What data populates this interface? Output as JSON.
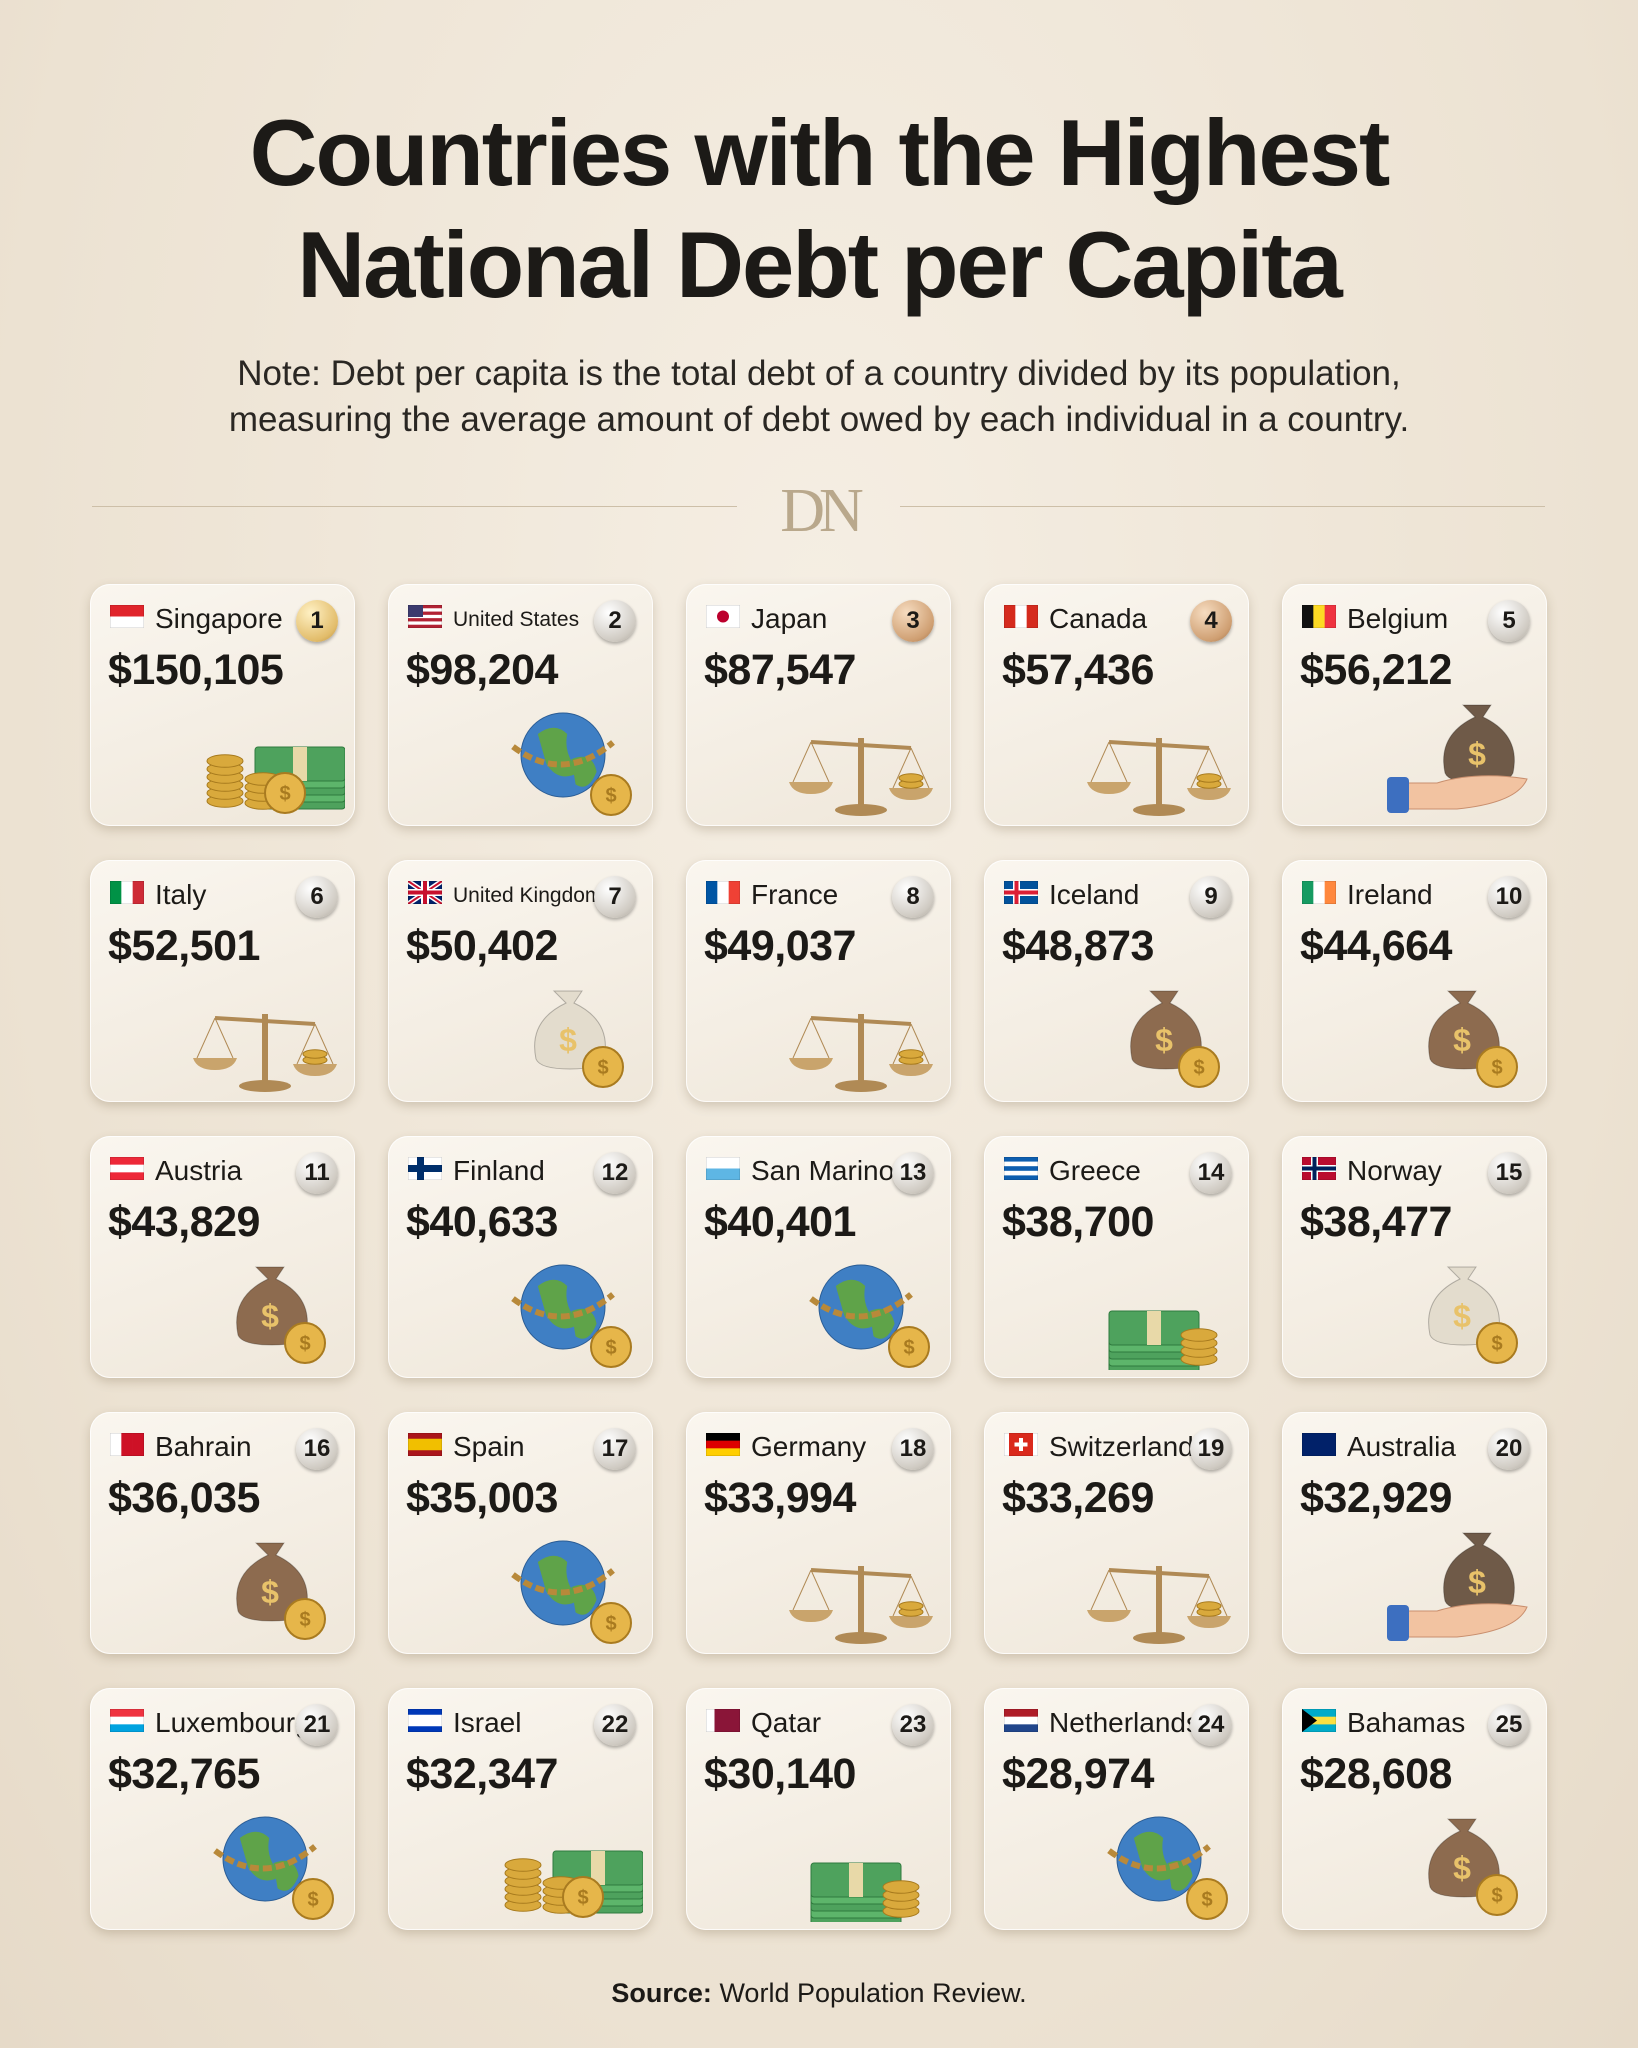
{
  "header": {
    "title": [
      "Countries with the Highest",
      "National Debt per Capita"
    ],
    "note": [
      "Note: Debt per capita is the total debt of a country divided by its population,",
      "measuring the average amount of debt owed by each individual in a country."
    ],
    "logo": "DN"
  },
  "cards": [
    {
      "rank": 1,
      "country": "Singapore",
      "debt": "$150,105"
    },
    {
      "rank": 2,
      "country": "United States",
      "debt": "$98,204"
    },
    {
      "rank": 3,
      "country": "Japan",
      "debt": "$87,547"
    },
    {
      "rank": 4,
      "country": "Canada",
      "debt": "$57,436"
    },
    {
      "rank": 5,
      "country": "Belgium",
      "debt": "$56,212"
    },
    {
      "rank": 6,
      "country": "Italy",
      "debt": "$52,501"
    },
    {
      "rank": 7,
      "country": "United Kingdom",
      "debt": "$50,402"
    },
    {
      "rank": 8,
      "country": "France",
      "debt": "$49,037"
    },
    {
      "rank": 9,
      "country": "Iceland",
      "debt": "$48,873"
    },
    {
      "rank": 10,
      "country": "Ireland",
      "debt": "$44,664"
    },
    {
      "rank": 11,
      "country": "Austria",
      "debt": "$43,829"
    },
    {
      "rank": 12,
      "country": "Finland",
      "debt": "$40,633"
    },
    {
      "rank": 13,
      "country": "San Marino",
      "debt": "$40,401"
    },
    {
      "rank": 14,
      "country": "Greece",
      "debt": "$38,700"
    },
    {
      "rank": 15,
      "country": "Norway",
      "debt": "$38,477"
    },
    {
      "rank": 16,
      "country": "Bahrain",
      "debt": "$36,035"
    },
    {
      "rank": 17,
      "country": "Spain",
      "debt": "$35,003"
    },
    {
      "rank": 18,
      "country": "Germany",
      "debt": "$33,994"
    },
    {
      "rank": 19,
      "country": "Switzerland",
      "debt": "$33,269"
    },
    {
      "rank": 20,
      "country": "Australia",
      "debt": "$32,929"
    },
    {
      "rank": 21,
      "country": "Luxembourg",
      "debt": "$32,765"
    },
    {
      "rank": 22,
      "country": "Israel",
      "debt": "$32,347"
    },
    {
      "rank": 23,
      "country": "Qatar",
      "debt": "$30,140"
    },
    {
      "rank": 24,
      "country": "Netherlands",
      "debt": "$28,974"
    },
    {
      "rank": 25,
      "country": "Bahamas",
      "debt": "$28,608"
    }
  ],
  "footer": {
    "source_label": "Source:",
    "source": "World Population Review."
  }
}
